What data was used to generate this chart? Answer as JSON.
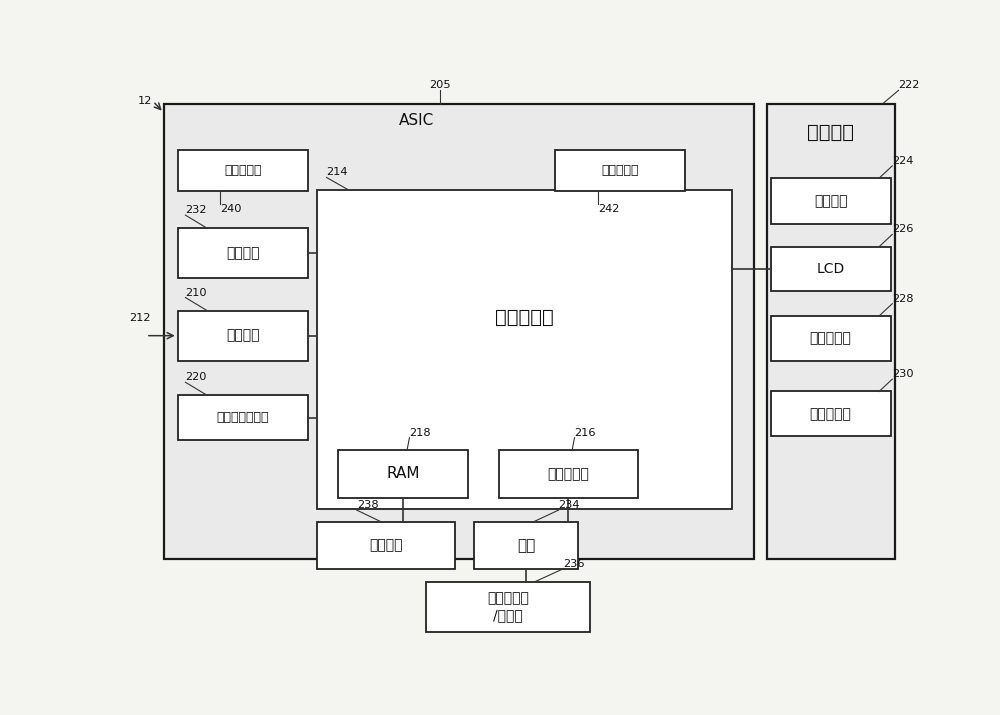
{
  "bg_color": "#f4f4f0",
  "box_color": "#ffffff",
  "box_edge_color": "#222222",
  "line_color": "#333333",
  "text_color": "#111111",
  "label_12": "12",
  "label_205": "205",
  "label_222": "222",
  "label_224": "224",
  "label_226": "226",
  "label_228": "228",
  "label_230": "230",
  "label_232": "232",
  "label_214": "214",
  "label_210": "210",
  "label_220": "220",
  "label_212": "212",
  "label_218": "218",
  "label_216": "216",
  "label_238": "238",
  "label_234": "234",
  "label_236": "236",
  "label_240": "240",
  "label_242": "242",
  "text_asic": "ASIC",
  "text_processor": "处理器模块",
  "text_temp1": "温度传感器",
  "text_temp2": "温度传感器",
  "text_telemetry": "遥测模块",
  "text_potentiostat": "恒电位仪",
  "text_data_store": "数据存储存储器",
  "text_ram": "RAM",
  "text_prog": "程序存储器",
  "text_comm": "通信端口",
  "text_battery": "电池",
  "text_charger": "电池充电器\n/调节器",
  "text_ui": "用户界面",
  "text_user_btn": "用户按鈕",
  "text_lcd": "LCD",
  "text_vibrator": "振动器电机",
  "text_audio": "音频换能器"
}
